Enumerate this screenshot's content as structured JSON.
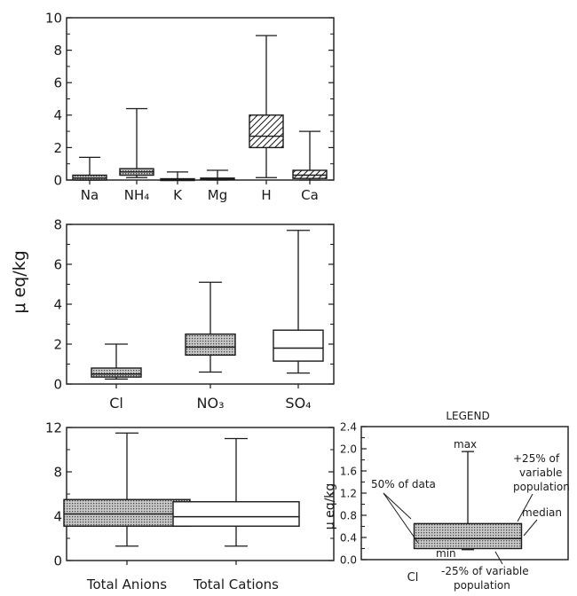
{
  "y_axis_label": "μ eq/kg",
  "chart_data": [
    {
      "type": "box",
      "title": "",
      "ylabel": "",
      "ylim": [
        0,
        10
      ],
      "yticks": [
        0,
        2,
        4,
        6,
        8,
        10
      ],
      "categories": [
        "Na",
        "NH₄",
        "K",
        "Mg",
        "H",
        "Ca"
      ],
      "boxes": [
        {
          "label": "Na",
          "min": 0.0,
          "q1": 0.0,
          "median": 0.12,
          "q3": 0.3,
          "max": 1.4,
          "fill": "dots"
        },
        {
          "label": "NH₄",
          "min": 0.15,
          "q1": 0.3,
          "median": 0.5,
          "q3": 0.7,
          "max": 4.4,
          "fill": "dots"
        },
        {
          "label": "K",
          "min": 0.0,
          "q1": 0.0,
          "median": 0.03,
          "q3": 0.08,
          "max": 0.5,
          "fill": "dots"
        },
        {
          "label": "Mg",
          "min": 0.0,
          "q1": 0.02,
          "median": 0.05,
          "q3": 0.12,
          "max": 0.6,
          "fill": "dots"
        },
        {
          "label": "H",
          "min": 0.15,
          "q1": 2.0,
          "median": 2.7,
          "q3": 4.0,
          "max": 8.9,
          "fill": "hatch"
        },
        {
          "label": "Ca",
          "min": 0.0,
          "q1": 0.1,
          "median": 0.3,
          "q3": 0.6,
          "max": 3.0,
          "fill": "hatch"
        }
      ]
    },
    {
      "type": "box",
      "title": "",
      "ylabel": "μ eq/kg",
      "ylim": [
        0,
        8
      ],
      "yticks": [
        0,
        2,
        4,
        6,
        8
      ],
      "categories": [
        "Cl",
        "NO₃",
        "SO₄"
      ],
      "boxes": [
        {
          "label": "Cl",
          "min": 0.25,
          "q1": 0.35,
          "median": 0.5,
          "q3": 0.8,
          "max": 2.0,
          "fill": "dots"
        },
        {
          "label": "NO₃",
          "min": 0.6,
          "q1": 1.45,
          "median": 1.85,
          "q3": 2.5,
          "max": 5.1,
          "fill": "dots"
        },
        {
          "label": "SO₄",
          "min": 0.55,
          "q1": 1.15,
          "median": 1.8,
          "q3": 2.7,
          "max": 7.7,
          "fill": "none"
        }
      ]
    },
    {
      "type": "box",
      "title": "",
      "ylabel": "",
      "ylim": [
        0,
        12
      ],
      "yticks": [
        0,
        4,
        8,
        12
      ],
      "categories": [
        "Total Anions",
        "Total Cations"
      ],
      "boxes": [
        {
          "label": "Total Anions",
          "min": 1.3,
          "q1": 3.1,
          "median": 4.2,
          "q3": 5.5,
          "max": 11.5,
          "fill": "dots"
        },
        {
          "label": "Total Cations",
          "min": 1.3,
          "q1": 3.1,
          "median": 3.95,
          "q3": 5.3,
          "max": 11.0,
          "fill": "none"
        }
      ]
    },
    {
      "type": "box",
      "title": "LEGEND",
      "ylabel": "μ eq/kg",
      "ylim": [
        0.0,
        2.4
      ],
      "yticks": [
        "0.0",
        "0.4",
        "0.8",
        "1.2",
        "1.6",
        "2.0",
        "2.4"
      ],
      "categories": [
        "Cl"
      ],
      "boxes": [
        {
          "label": "Cl",
          "min": 0.18,
          "q1": 0.2,
          "median": 0.38,
          "q3": 0.65,
          "max": 1.95,
          "fill": "dots"
        }
      ],
      "annotations": [
        "max",
        "+25% of",
        "variable",
        "population",
        "50% of data",
        "median",
        "min",
        "-25% of variable",
        "population"
      ]
    }
  ]
}
